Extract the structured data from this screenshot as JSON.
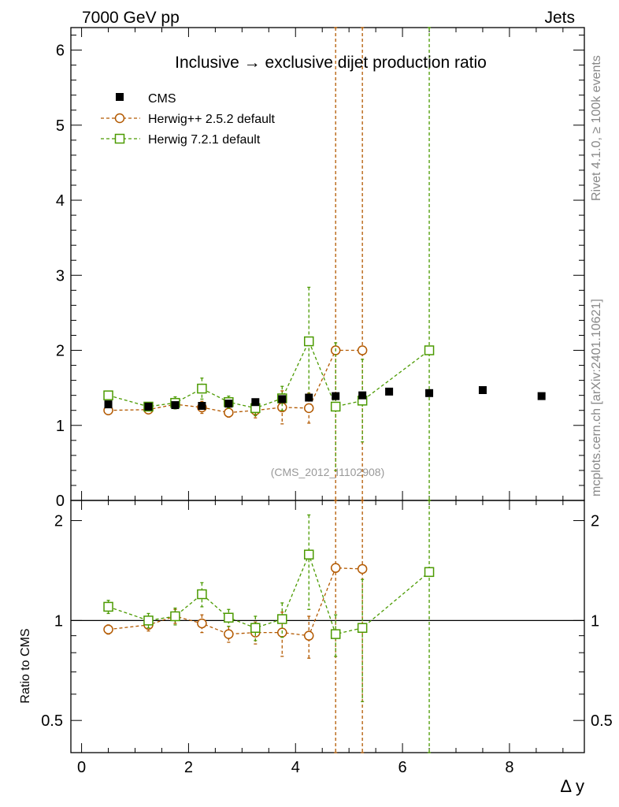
{
  "header": {
    "energy_label": "7000 GeV pp",
    "process_label": "Jets"
  },
  "side_labels": {
    "rivet": "Rivet 4.1.0, ≥ 100k events",
    "mcplots": "mcplots.cern.ch [arXiv:2401.10621]"
  },
  "chart_data": {
    "type": "scatter",
    "title": "Inclusive → exclusive dijet production ratio",
    "analysis_tag": "(CMS_2012_I1102908)",
    "xlabel": "Δ y",
    "ylabel": "",
    "ratio_ylabel": "Ratio to CMS",
    "xlim": [
      -0.2,
      9.4
    ],
    "ylim": [
      0,
      6.3
    ],
    "ratio_ylim": [
      0.4,
      2.3
    ],
    "x_ticks": [
      "0",
      "2",
      "4",
      "6",
      "8"
    ],
    "y_ticks": [
      "0",
      "1",
      "2",
      "3",
      "4",
      "5",
      "6"
    ],
    "ratio_y_ticks": [
      "0.5",
      "1",
      "2"
    ],
    "legend_position": "top-left",
    "series": [
      {
        "name": "CMS",
        "style": "square-filled",
        "color": "#000000",
        "x": [
          0.5,
          1.25,
          1.75,
          2.25,
          2.75,
          3.25,
          3.75,
          4.25,
          4.75,
          5.25,
          5.75,
          6.5,
          7.5,
          8.6
        ],
        "y": [
          1.28,
          1.25,
          1.27,
          1.26,
          1.29,
          1.31,
          1.35,
          1.37,
          1.39,
          1.4,
          1.45,
          1.43,
          1.47,
          1.39
        ],
        "yerr": [
          0.02,
          0.02,
          0.02,
          0.02,
          0.02,
          0.02,
          0.02,
          0.02,
          0.02,
          0.02,
          0.02,
          0.02,
          0.02,
          0.02
        ]
      },
      {
        "name": "Herwig++ 2.5.2 default",
        "style": "circle-open-dashed",
        "color": "#b35900",
        "x": [
          0.5,
          1.25,
          1.75,
          2.25,
          2.75,
          3.25,
          3.75,
          4.25,
          4.75,
          5.25
        ],
        "y": [
          1.2,
          1.21,
          1.28,
          1.24,
          1.17,
          1.2,
          1.24,
          1.23,
          2.0,
          2.0
        ],
        "yerr": [
          0.03,
          0.05,
          0.06,
          0.08,
          0.06,
          0.1,
          0.22,
          0.2,
          10.0,
          10.0
        ],
        "ratio": [
          0.94,
          0.97,
          1.03,
          0.98,
          0.91,
          0.92,
          0.92,
          0.9,
          1.44,
          1.43
        ],
        "ratio_err": [
          0.03,
          0.04,
          0.05,
          0.06,
          0.05,
          0.07,
          0.14,
          0.13,
          5.0,
          5.0
        ]
      },
      {
        "name": "Herwig 7.2.1 default",
        "style": "square-open-dashed",
        "color": "#4b9a00",
        "x": [
          0.5,
          1.25,
          1.75,
          2.25,
          2.75,
          3.25,
          3.75,
          4.25,
          4.75,
          5.25,
          6.5
        ],
        "y": [
          1.4,
          1.25,
          1.3,
          1.49,
          1.31,
          1.23,
          1.36,
          2.12,
          1.25,
          1.33,
          2.0
        ],
        "yerr": [
          0.05,
          0.05,
          0.08,
          0.14,
          0.08,
          0.1,
          0.16,
          0.72,
          0.85,
          0.55,
          10.0
        ],
        "ratio": [
          1.1,
          1.0,
          1.03,
          1.2,
          1.02,
          0.95,
          1.01,
          1.58,
          0.91,
          0.95,
          1.4
        ],
        "ratio_err": [
          0.05,
          0.05,
          0.06,
          0.1,
          0.06,
          0.08,
          0.12,
          0.5,
          0.13,
          0.38,
          5.0
        ]
      }
    ]
  }
}
